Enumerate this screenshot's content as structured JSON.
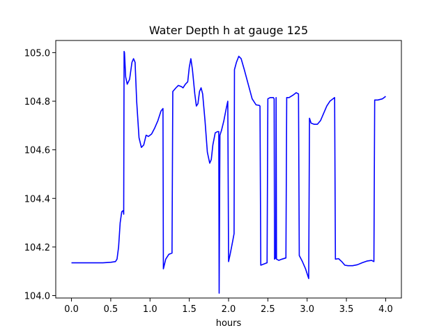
{
  "chart_data": {
    "type": "line",
    "title": "Water Depth h at gauge 125",
    "xlabel": "hours",
    "ylabel": "",
    "xlim": [
      -0.2,
      4.2
    ],
    "ylim": [
      103.99,
      105.05
    ],
    "grid": false,
    "legend": "none",
    "xticks": [
      {
        "value": 0.0,
        "label": "0.0"
      },
      {
        "value": 0.5,
        "label": "0.5"
      },
      {
        "value": 1.0,
        "label": "1.0"
      },
      {
        "value": 1.5,
        "label": "1.5"
      },
      {
        "value": 2.0,
        "label": "2.0"
      },
      {
        "value": 2.5,
        "label": "2.5"
      },
      {
        "value": 3.0,
        "label": "3.0"
      },
      {
        "value": 3.5,
        "label": "3.5"
      },
      {
        "value": 4.0,
        "label": "4.0"
      }
    ],
    "yticks": [
      {
        "value": 104.0,
        "label": "104.0"
      },
      {
        "value": 104.2,
        "label": "104.2"
      },
      {
        "value": 104.4,
        "label": "104.4"
      },
      {
        "value": 104.6,
        "label": "104.6"
      },
      {
        "value": 104.8,
        "label": "104.8"
      },
      {
        "value": 105.0,
        "label": "105.0"
      }
    ],
    "series": [
      {
        "color": "#0000ff",
        "points": [
          [
            0.0,
            104.135
          ],
          [
            0.02,
            104.135
          ],
          [
            0.1,
            104.135
          ],
          [
            0.2,
            104.135
          ],
          [
            0.3,
            104.135
          ],
          [
            0.4,
            104.135
          ],
          [
            0.5,
            104.137
          ],
          [
            0.56,
            104.14
          ],
          [
            0.58,
            104.15
          ],
          [
            0.6,
            104.2
          ],
          [
            0.62,
            104.3
          ],
          [
            0.64,
            104.345
          ],
          [
            0.66,
            104.35
          ],
          [
            0.665,
            104.335
          ],
          [
            0.67,
            105.005
          ],
          [
            0.675,
            105.0
          ],
          [
            0.69,
            104.9
          ],
          [
            0.71,
            104.87
          ],
          [
            0.74,
            104.89
          ],
          [
            0.77,
            104.96
          ],
          [
            0.79,
            104.975
          ],
          [
            0.81,
            104.96
          ],
          [
            0.83,
            104.8
          ],
          [
            0.86,
            104.65
          ],
          [
            0.89,
            104.61
          ],
          [
            0.92,
            104.62
          ],
          [
            0.95,
            104.66
          ],
          [
            0.98,
            104.655
          ],
          [
            1.02,
            104.665
          ],
          [
            1.06,
            104.69
          ],
          [
            1.1,
            104.72
          ],
          [
            1.14,
            104.76
          ],
          [
            1.165,
            104.77
          ],
          [
            1.17,
            104.11
          ],
          [
            1.2,
            104.15
          ],
          [
            1.24,
            104.17
          ],
          [
            1.28,
            104.175
          ],
          [
            1.29,
            104.84
          ],
          [
            1.33,
            104.855
          ],
          [
            1.36,
            104.865
          ],
          [
            1.4,
            104.86
          ],
          [
            1.42,
            104.855
          ],
          [
            1.45,
            104.87
          ],
          [
            1.48,
            104.88
          ],
          [
            1.5,
            104.94
          ],
          [
            1.52,
            104.975
          ],
          [
            1.54,
            104.93
          ],
          [
            1.57,
            104.83
          ],
          [
            1.59,
            104.78
          ],
          [
            1.61,
            104.79
          ],
          [
            1.63,
            104.84
          ],
          [
            1.65,
            104.855
          ],
          [
            1.67,
            104.83
          ],
          [
            1.7,
            104.72
          ],
          [
            1.73,
            104.59
          ],
          [
            1.76,
            104.545
          ],
          [
            1.78,
            104.56
          ],
          [
            1.8,
            104.62
          ],
          [
            1.83,
            104.67
          ],
          [
            1.86,
            104.675
          ],
          [
            1.875,
            104.675
          ],
          [
            1.88,
            104.01
          ],
          [
            1.89,
            104.66
          ],
          [
            1.91,
            104.68
          ],
          [
            1.94,
            104.72
          ],
          [
            1.97,
            104.77
          ],
          [
            1.99,
            104.8
          ],
          [
            2.0,
            104.14
          ],
          [
            2.02,
            104.17
          ],
          [
            2.05,
            104.22
          ],
          [
            2.07,
            104.255
          ],
          [
            2.075,
            104.93
          ],
          [
            2.1,
            104.96
          ],
          [
            2.13,
            104.985
          ],
          [
            2.16,
            104.975
          ],
          [
            2.2,
            104.93
          ],
          [
            2.25,
            104.87
          ],
          [
            2.3,
            104.81
          ],
          [
            2.35,
            104.785
          ],
          [
            2.39,
            104.783
          ],
          [
            2.4,
            104.78
          ],
          [
            2.41,
            104.125
          ],
          [
            2.45,
            104.13
          ],
          [
            2.49,
            104.135
          ],
          [
            2.5,
            104.81
          ],
          [
            2.53,
            104.815
          ],
          [
            2.57,
            104.815
          ],
          [
            2.58,
            104.81
          ],
          [
            2.585,
            104.15
          ],
          [
            2.6,
            104.155
          ],
          [
            2.605,
            104.815
          ],
          [
            2.61,
            104.15
          ],
          [
            2.64,
            104.145
          ],
          [
            2.68,
            104.15
          ],
          [
            2.73,
            104.155
          ],
          [
            2.74,
            104.815
          ],
          [
            2.77,
            104.815
          ],
          [
            2.82,
            104.825
          ],
          [
            2.86,
            104.835
          ],
          [
            2.89,
            104.83
          ],
          [
            2.9,
            104.165
          ],
          [
            2.94,
            104.14
          ],
          [
            2.98,
            104.11
          ],
          [
            3.02,
            104.07
          ],
          [
            3.03,
            104.73
          ],
          [
            3.05,
            104.71
          ],
          [
            3.09,
            104.705
          ],
          [
            3.13,
            104.705
          ],
          [
            3.17,
            104.72
          ],
          [
            3.21,
            104.75
          ],
          [
            3.25,
            104.78
          ],
          [
            3.29,
            104.8
          ],
          [
            3.33,
            104.81
          ],
          [
            3.35,
            104.815
          ],
          [
            3.36,
            104.15
          ],
          [
            3.4,
            104.152
          ],
          [
            3.44,
            104.14
          ],
          [
            3.48,
            104.125
          ],
          [
            3.52,
            104.123
          ],
          [
            3.58,
            104.123
          ],
          [
            3.64,
            104.127
          ],
          [
            3.7,
            104.135
          ],
          [
            3.76,
            104.142
          ],
          [
            3.82,
            104.145
          ],
          [
            3.85,
            104.14
          ],
          [
            3.86,
            104.805
          ],
          [
            3.9,
            104.805
          ],
          [
            3.96,
            104.81
          ],
          [
            4.0,
            104.82
          ]
        ]
      }
    ]
  }
}
